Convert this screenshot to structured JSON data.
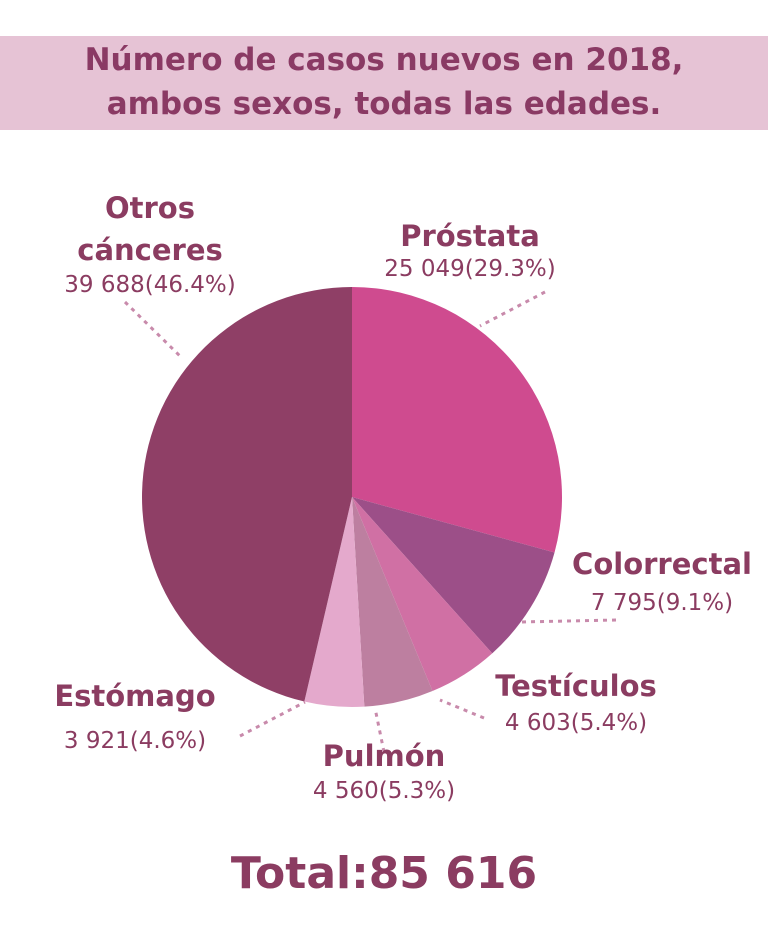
{
  "title": {
    "line1": "Número de casos nuevos en 2018,",
    "line2": "ambos sexos, todas las edades."
  },
  "chart_data": {
    "type": "pie",
    "title": "Número de casos nuevos en 2018, ambos sexos, todas las edades.",
    "slices": [
      {
        "label": "Próstata",
        "value": 25049,
        "percent": 29.3,
        "value_text": "25 049(29.3%)",
        "color": "#cf4b8f"
      },
      {
        "label": "Colorrectal",
        "value": 7795,
        "percent": 9.1,
        "value_text": "7 795(9.1%)",
        "color": "#9c4f88"
      },
      {
        "label": "Testículos",
        "value": 4603,
        "percent": 5.4,
        "value_text": "4 603(5.4%)",
        "color": "#d070a4"
      },
      {
        "label": "Pulmón",
        "value": 4560,
        "percent": 5.3,
        "value_text": "4 560(5.3%)",
        "color": "#bd7fa0"
      },
      {
        "label": "Estómago",
        "value": 3921,
        "percent": 4.6,
        "value_text": "3 921(4.6%)",
        "color": "#e4a9cc"
      },
      {
        "label": "Otros cánceres",
        "label_lines": [
          "Otros",
          "cánceres"
        ],
        "value": 39688,
        "percent": 46.4,
        "value_text": "39 688(46.4%)",
        "color": "#8f3f66"
      }
    ],
    "total_text": "Total:85 616"
  },
  "colors": {
    "title_band": "#e6c3d5",
    "title_text": "#8a3a64",
    "label_text": "#8b3c61",
    "value_text": "#8b3c61",
    "leader_line": "#c88aab"
  }
}
